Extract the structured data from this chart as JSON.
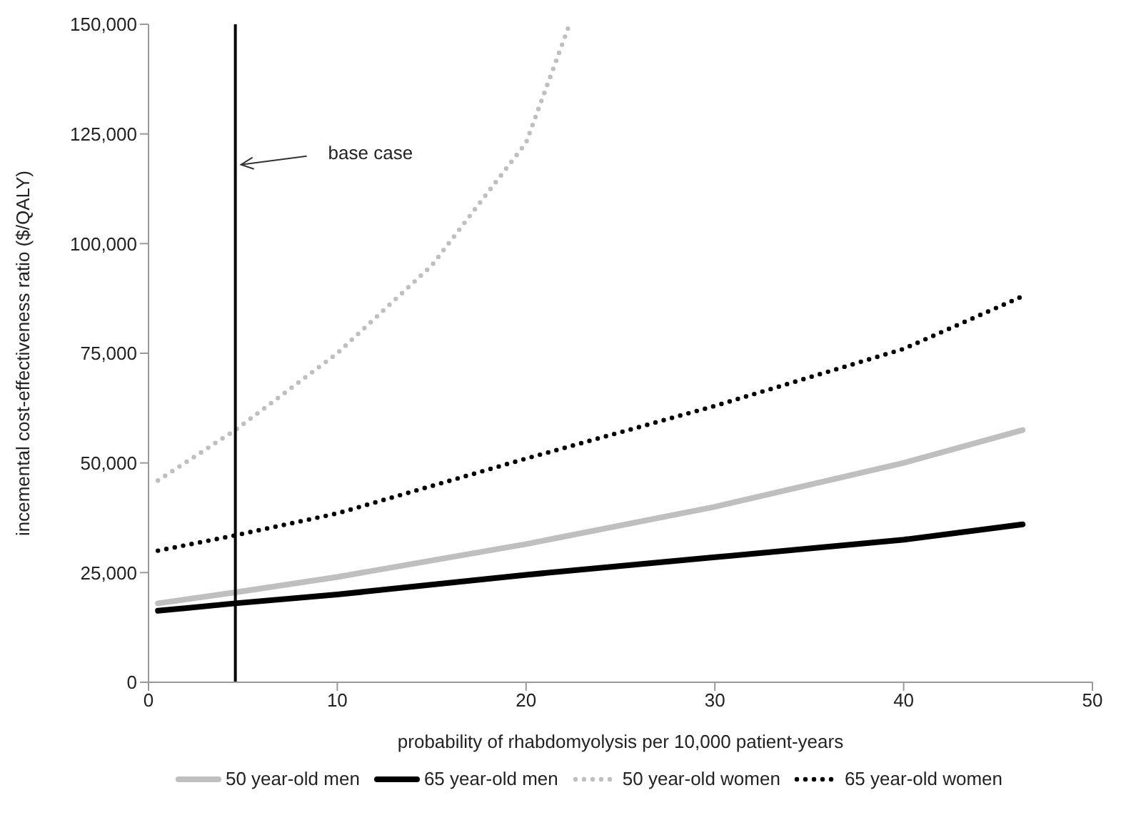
{
  "chart_data": {
    "type": "line",
    "xlabel": "probability of rhabdomyolysis per 10,000 patient-years",
    "ylabel": "incemental cost-effectiveness ratio ($/QALY)",
    "xlim": [
      0,
      50
    ],
    "xticks": [
      0,
      10,
      20,
      30,
      40,
      50
    ],
    "ylim": [
      0,
      150000
    ],
    "yticks": [
      0,
      {
        "value": 25000,
        "label": "25,000"
      },
      {
        "value": 50000,
        "label": "50,000"
      },
      {
        "value": 75000,
        "label": "75,000"
      },
      {
        "value": 100000,
        "label": "100,000"
      },
      {
        "value": 125000,
        "label": "125,000"
      },
      {
        "value": 150000,
        "label": "150,000"
      }
    ],
    "grid": false,
    "legend": "bottom",
    "marker": "none",
    "series": [
      {
        "name": "50 year-old men",
        "color": "#bfbfbf",
        "line_style": "solid",
        "x": [
          0.5,
          4.6,
          10,
          20,
          30,
          40,
          46.3
        ],
        "values": [
          18000,
          20500,
          24000,
          31500,
          40000,
          50000,
          57500
        ]
      },
      {
        "name": "65 year-old men",
        "color": "#000000",
        "line_style": "solid",
        "x": [
          0.5,
          4.6,
          10,
          20,
          30,
          40,
          46.3
        ],
        "values": [
          16300,
          18000,
          20000,
          24500,
          28500,
          32500,
          36000
        ]
      },
      {
        "name": "50 year-old women",
        "color": "#bfbfbf",
        "line_style": "dotted",
        "x": [
          0.5,
          4.6,
          10,
          15,
          20,
          22.3
        ],
        "values": [
          46000,
          57500,
          75000,
          95000,
          123000,
          150000
        ]
      },
      {
        "name": "65 year-old women",
        "color": "#000000",
        "line_style": "dotted",
        "x": [
          0.5,
          4.6,
          10,
          20,
          30,
          40,
          46.3
        ],
        "values": [
          30000,
          33500,
          38500,
          51000,
          63000,
          76000,
          88000
        ]
      }
    ],
    "ref_lines": [
      {
        "axis": "x",
        "value": 4.6,
        "color": "#000000",
        "line_style": "solid"
      }
    ],
    "annotations": [
      {
        "text": "base case",
        "x": 4.6,
        "y": 118000
      }
    ]
  }
}
